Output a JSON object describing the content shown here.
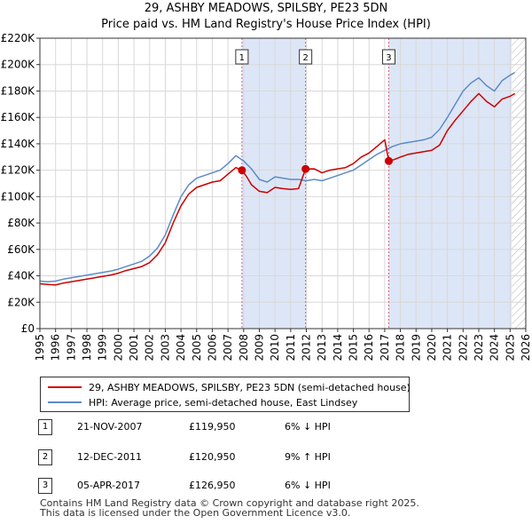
{
  "chart_data": {
    "type": "line",
    "title": "29, ASHBY MEADOWS, SPILSBY, PE23 5DN",
    "subtitle": "Price paid vs. HM Land Registry's House Price Index (HPI)",
    "xlabel": "",
    "ylabel": "",
    "xlim": [
      1995,
      2026
    ],
    "ylim": [
      0,
      220000
    ],
    "x_ticks": [
      "1995",
      "1996",
      "1997",
      "1998",
      "1999",
      "2000",
      "2001",
      "2002",
      "2003",
      "2004",
      "2005",
      "2006",
      "2007",
      "2008",
      "2009",
      "2010",
      "2011",
      "2012",
      "2013",
      "2014",
      "2015",
      "2016",
      "2017",
      "2018",
      "2019",
      "2020",
      "2021",
      "2022",
      "2023",
      "2024",
      "2025",
      "2026"
    ],
    "y_ticks": [
      "£0",
      "£20K",
      "£40K",
      "£60K",
      "£80K",
      "£100K",
      "£120K",
      "£140K",
      "£160K",
      "£180K",
      "£200K",
      "£220K"
    ],
    "grid": true,
    "colors": {
      "property": "#cc0000",
      "hpi": "#5b8cc8",
      "shade": "#dde6f6",
      "marker_line": "#e06080"
    },
    "series": [
      {
        "name": "29, ASHBY MEADOWS, SPILSBY, PE23 5DN (semi-detached house)",
        "color": "#cc0000",
        "x": [
          1995.0,
          1995.5,
          1996.0,
          1996.5,
          1997.0,
          1997.5,
          1998.0,
          1998.5,
          1999.0,
          1999.5,
          2000.0,
          2000.5,
          2001.0,
          2001.5,
          2002.0,
          2002.5,
          2003.0,
          2003.5,
          2004.0,
          2004.5,
          2005.0,
          2005.5,
          2006.0,
          2006.5,
          2007.0,
          2007.5,
          2007.89,
          2008.2,
          2008.5,
          2009.0,
          2009.5,
          2010.0,
          2010.5,
          2011.0,
          2011.5,
          2011.95,
          2012.5,
          2013.0,
          2013.5,
          2014.0,
          2014.5,
          2015.0,
          2015.5,
          2016.0,
          2016.5,
          2017.0,
          2017.26,
          2017.6,
          2018.0,
          2018.5,
          2019.0,
          2019.5,
          2020.0,
          2020.5,
          2021.0,
          2021.5,
          2022.0,
          2022.5,
          2023.0,
          2023.5,
          2024.0,
          2024.5,
          2025.0,
          2025.3
        ],
        "values": [
          34000,
          33500,
          33000,
          34500,
          35500,
          36500,
          37500,
          38500,
          39500,
          40500,
          42000,
          44000,
          45500,
          47000,
          50000,
          56000,
          65000,
          80000,
          93000,
          102000,
          107000,
          109000,
          111000,
          112000,
          117000,
          122000,
          119950,
          115000,
          109000,
          104000,
          103000,
          107000,
          106000,
          105500,
          106000,
          120950,
          121000,
          118000,
          120000,
          121000,
          122000,
          125000,
          130000,
          133000,
          138000,
          143000,
          126950,
          128000,
          130000,
          132000,
          133000,
          134000,
          135000,
          139000,
          150000,
          158000,
          165000,
          172000,
          178000,
          172000,
          168000,
          174000,
          176000,
          178000
        ]
      },
      {
        "name": "HPI: Average price, semi-detached house, East Lindsey",
        "color": "#5b8cc8",
        "x": [
          1995.0,
          1995.5,
          1996.0,
          1996.5,
          1997.0,
          1997.5,
          1998.0,
          1998.5,
          1999.0,
          1999.5,
          2000.0,
          2000.5,
          2001.0,
          2001.5,
          2002.0,
          2002.5,
          2003.0,
          2003.5,
          2004.0,
          2004.5,
          2005.0,
          2005.5,
          2006.0,
          2006.5,
          2007.0,
          2007.5,
          2008.0,
          2008.5,
          2009.0,
          2009.5,
          2010.0,
          2010.5,
          2011.0,
          2011.5,
          2012.0,
          2012.5,
          2013.0,
          2013.5,
          2014.0,
          2014.5,
          2015.0,
          2015.5,
          2016.0,
          2016.5,
          2017.0,
          2017.5,
          2018.0,
          2018.5,
          2019.0,
          2019.5,
          2020.0,
          2020.5,
          2021.0,
          2021.5,
          2022.0,
          2022.5,
          2023.0,
          2023.5,
          2024.0,
          2024.5,
          2025.0,
          2025.3
        ],
        "values": [
          36000,
          35500,
          36000,
          37500,
          38500,
          39500,
          40500,
          41500,
          42500,
          43500,
          45000,
          47000,
          49000,
          51000,
          55000,
          61000,
          71000,
          86000,
          100000,
          109000,
          114000,
          116000,
          118000,
          120000,
          125000,
          131000,
          127000,
          121000,
          113000,
          111000,
          115000,
          114000,
          113000,
          113000,
          112000,
          113000,
          112000,
          114000,
          116000,
          118000,
          120000,
          124000,
          128000,
          132000,
          135000,
          138000,
          140000,
          141000,
          142000,
          143000,
          145000,
          151000,
          160000,
          170000,
          180000,
          186000,
          190000,
          184000,
          180000,
          188000,
          192000,
          194000
        ]
      }
    ],
    "sale_markers": [
      {
        "label": "1",
        "x": 2007.89,
        "value": 119950
      },
      {
        "label": "2",
        "x": 2011.95,
        "value": 120950
      },
      {
        "label": "3",
        "x": 2017.26,
        "value": 126950
      }
    ],
    "shaded_ranges": [
      [
        2007.89,
        2011.95
      ],
      [
        2017.26,
        2025.1
      ]
    ],
    "future_hatch_from": 2025.1
  },
  "legend": {
    "property": "29, ASHBY MEADOWS, SPILSBY, PE23 5DN (semi-detached house)",
    "hpi": "HPI: Average price, semi-detached house, East Lindsey"
  },
  "sales": [
    {
      "num": "1",
      "date": "21-NOV-2007",
      "price": "£119,950",
      "hpi": "6% ↓ HPI"
    },
    {
      "num": "2",
      "date": "12-DEC-2011",
      "price": "£120,950",
      "hpi": "9% ↑ HPI"
    },
    {
      "num": "3",
      "date": "05-APR-2017",
      "price": "£126,950",
      "hpi": "6% ↓ HPI"
    }
  ],
  "footer": {
    "line1": "Contains HM Land Registry data © Crown copyright and database right 2025.",
    "line2": "This data is licensed under the Open Government Licence v3.0."
  }
}
